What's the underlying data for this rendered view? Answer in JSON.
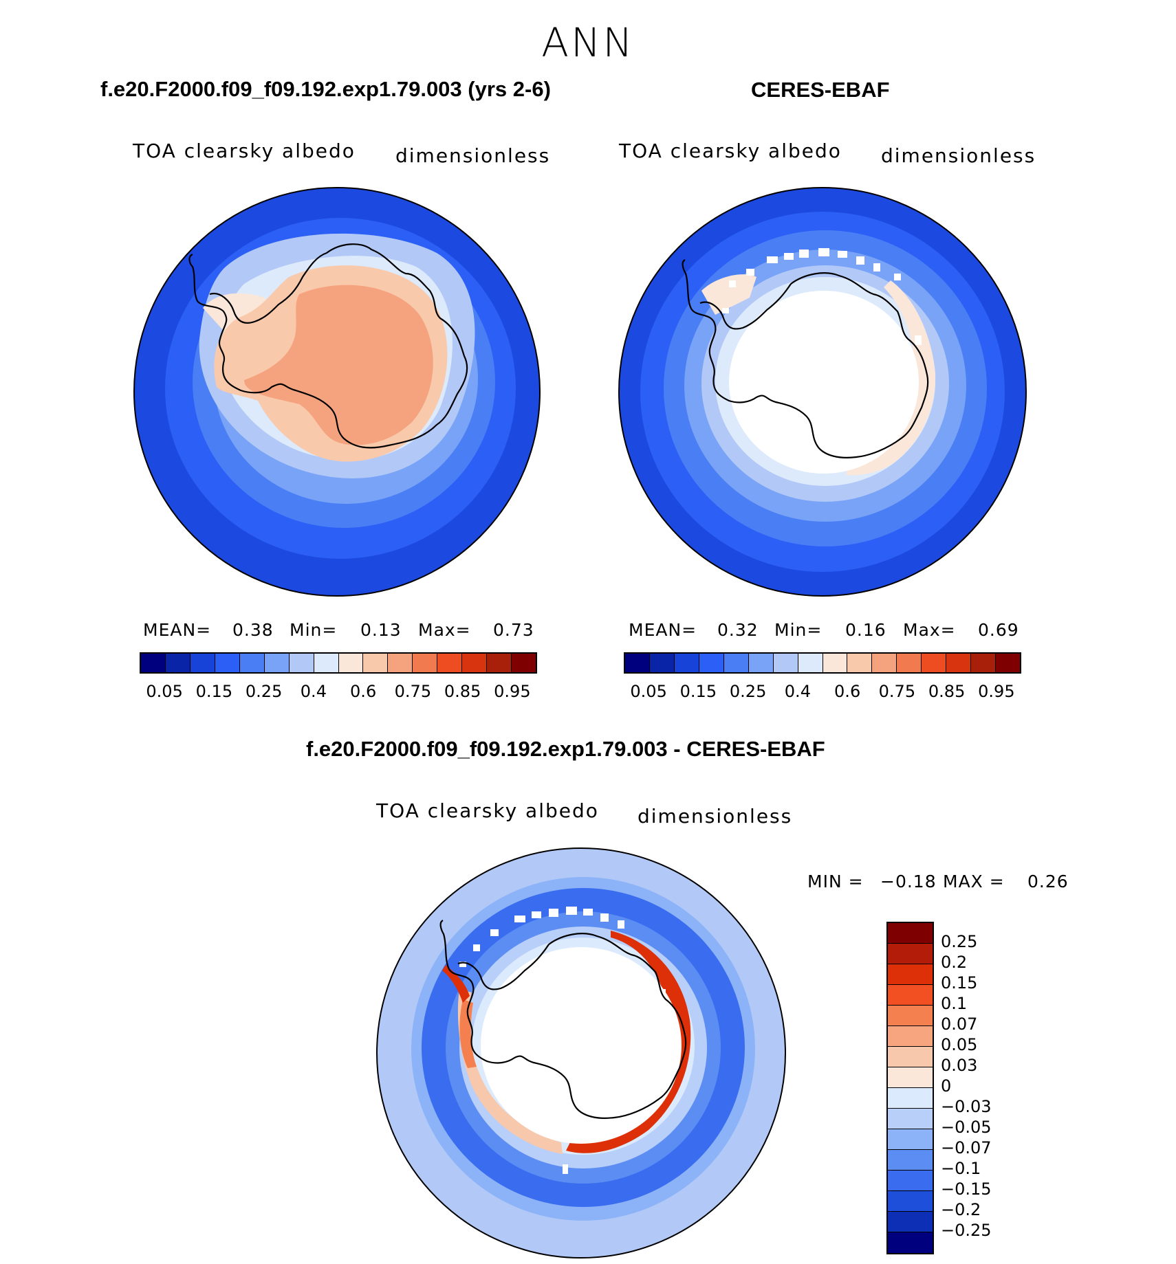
{
  "season": "ANN",
  "panels": [
    {
      "title": "f.e20.F2000.f09_f09.192.exp1.79.003 (yrs 2-6)",
      "variable": "TOA clearsky albedo",
      "units": "dimensionless",
      "stats": {
        "mean_label": "MEAN=",
        "mean": "0.38",
        "min_label": "Min=",
        "min": "0.13",
        "max_label": "Max=",
        "max": "0.73"
      }
    },
    {
      "title": "CERES-EBAF",
      "variable": "TOA clearsky albedo",
      "units": "dimensionless",
      "stats": {
        "mean_label": "MEAN=",
        "mean": "0.32",
        "min_label": "Min=",
        "min": "0.16",
        "max_label": "Max=",
        "max": "0.69"
      }
    },
    {
      "title": "f.e20.F2000.f09_f09.192.exp1.79.003 - CERES-EBAF",
      "variable": "TOA clearsky albedo",
      "units": "dimensionless",
      "stats": {
        "min_label": "MIN =",
        "min": "−0.18",
        "max_label": "MAX =",
        "max": "0.26"
      }
    }
  ],
  "abs_colorbar": {
    "colors": [
      "#00007f",
      "#0a24a8",
      "#1743d9",
      "#2b5ff5",
      "#4a7ef5",
      "#79a3f7",
      "#b2c9f8",
      "#dceafb",
      "#fbe7d9",
      "#f9c9ac",
      "#f5a37e",
      "#f27a4f",
      "#ee4d22",
      "#d93410",
      "#a8200a",
      "#7f0000"
    ],
    "tick_labels": [
      "0.05",
      "0.15",
      "0.25",
      "0.4",
      "0.6",
      "0.75",
      "0.85",
      "0.95"
    ]
  },
  "diff_colorbar": {
    "colors": [
      "#7f0000",
      "#b21c08",
      "#dd3008",
      "#f24f22",
      "#f5804f",
      "#f7a57f",
      "#f8c8ac",
      "#fbe7d9",
      "#dbeafc",
      "#b8cff9",
      "#8cb3f7",
      "#5c8df3",
      "#3a6cf0",
      "#1d4fdb",
      "#0c2fb5",
      "#00007f"
    ],
    "tick_labels": [
      "0.25",
      "0.2",
      "0.15",
      "0.1",
      "0.07",
      "0.05",
      "0.03",
      "0",
      "−0.03",
      "−0.05",
      "−0.07",
      "−0.1",
      "−0.15",
      "−0.2",
      "−0.25"
    ]
  }
}
